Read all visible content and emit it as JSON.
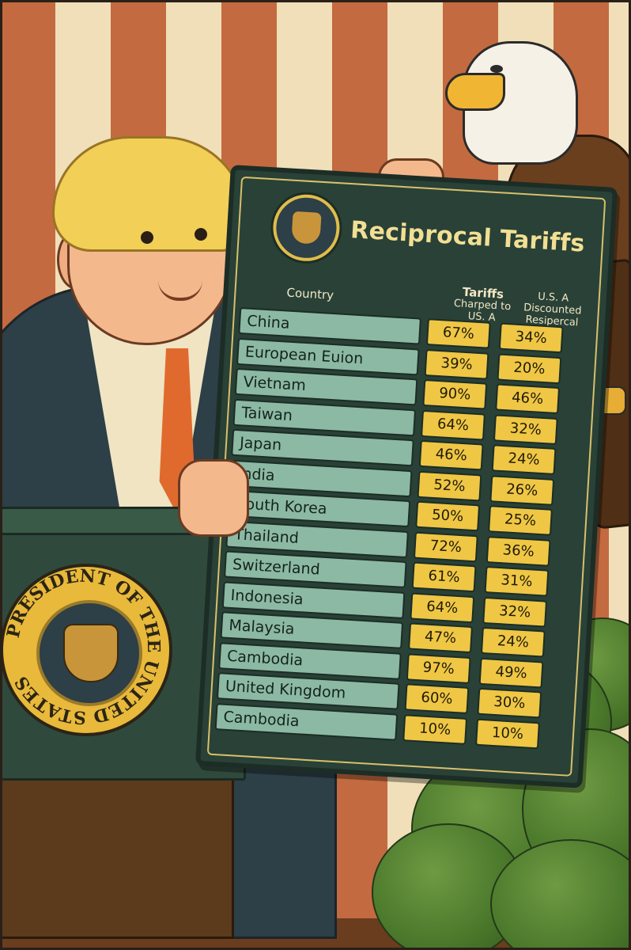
{
  "board": {
    "title": "Reciprocal Tariffs",
    "headers": {
      "country": "Country",
      "tariffs_line1": "Tariffs",
      "tariffs_line2": "Charped to",
      "tariffs_line3": "US. A",
      "discount_line1": "U.S. A",
      "discount_line2": "Discounted",
      "discount_line3": "Resipercal"
    },
    "rows": [
      {
        "country": "China",
        "tariff": "67%",
        "discounted": "34%"
      },
      {
        "country": "European Euion",
        "tariff": "39%",
        "discounted": "20%"
      },
      {
        "country": "Vietnam",
        "tariff": "90%",
        "discounted": "46%"
      },
      {
        "country": "Taiwan",
        "tariff": "64%",
        "discounted": "32%"
      },
      {
        "country": "Japan",
        "tariff": "46%",
        "discounted": "24%"
      },
      {
        "country": "India",
        "tariff": "52%",
        "discounted": "26%"
      },
      {
        "country": "South Korea",
        "tariff": "50%",
        "discounted": "25%"
      },
      {
        "country": "Thailand",
        "tariff": "72%",
        "discounted": "36%"
      },
      {
        "country": "Switzerland",
        "tariff": "61%",
        "discounted": "31%"
      },
      {
        "country": "Indonesia",
        "tariff": "64%",
        "discounted": "32%"
      },
      {
        "country": "Malaysia",
        "tariff": "47%",
        "discounted": "24%"
      },
      {
        "country": "Cambodia",
        "tariff": "97%",
        "discounted": "49%"
      },
      {
        "country": "United Kingdom",
        "tariff": "60%",
        "discounted": "30%"
      },
      {
        "country": "Cambodia",
        "tariff": "10%",
        "discounted": "10%"
      }
    ]
  },
  "podium": {
    "seal_text": "PRESIDENT OF THE UNITED STATES"
  },
  "colors": {
    "board": "#294137",
    "board_title": "#f2df93",
    "country_cell": "#8cb9a3",
    "value_cell": "#efc744",
    "tie": "#e06a2e",
    "hair": "#f2cf57",
    "suit": "#2d3f47"
  }
}
